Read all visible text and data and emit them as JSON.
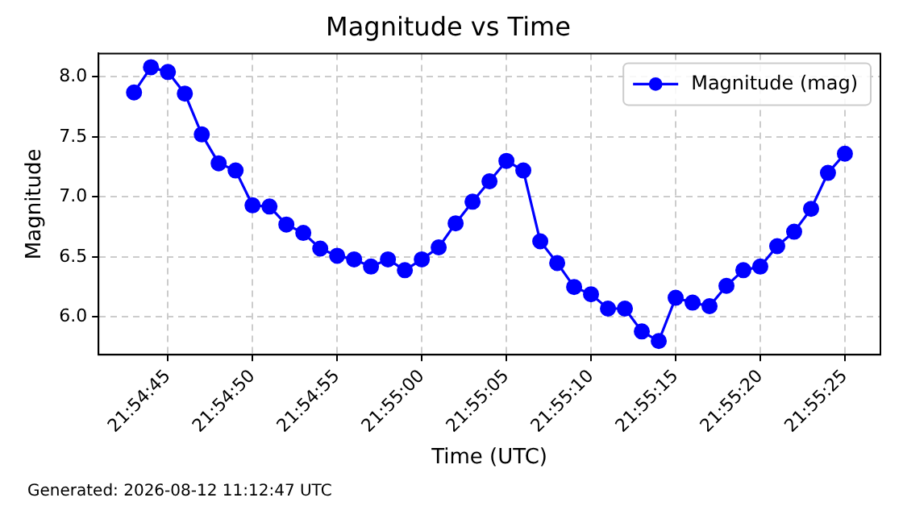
{
  "chart_data": {
    "type": "line",
    "title": "Magnitude vs Time",
    "xlabel": "Time (UTC)",
    "ylabel": "Magnitude",
    "x": [
      21.911944,
      21.912222,
      21.9125,
      21.912778,
      21.913056,
      21.913333,
      21.913611,
      21.913889,
      21.914167,
      21.914444,
      21.914722,
      21.915,
      21.915278,
      21.915556,
      21.915833,
      21.916111,
      21.916389,
      21.916667,
      21.916944,
      21.917222,
      21.9175,
      21.917778,
      21.918056,
      21.918333,
      21.918611,
      21.918889,
      21.919167,
      21.919444,
      21.919722,
      21.92,
      21.920278,
      21.920556,
      21.920833,
      21.921111,
      21.921389,
      21.921667,
      21.921944,
      21.922222,
      21.9225,
      21.922778,
      21.923056,
      21.923333,
      21.923611
    ],
    "series": [
      {
        "name": "Magnitude (mag)",
        "color": "#0000ff",
        "values": [
          7.87,
          8.08,
          8.04,
          7.86,
          7.52,
          7.28,
          7.22,
          6.93,
          6.92,
          6.77,
          6.7,
          6.57,
          6.51,
          6.48,
          6.42,
          6.48,
          6.39,
          6.48,
          6.58,
          6.78,
          6.96,
          7.13,
          7.3,
          7.22,
          6.63,
          6.45,
          6.25,
          6.19,
          6.07,
          6.07,
          5.88,
          5.8,
          6.16,
          6.12,
          6.09,
          6.26,
          6.39,
          6.42,
          6.59,
          6.71,
          6.9,
          7.2,
          7.36
        ]
      }
    ],
    "xlim": [
      21.911361,
      21.924194
    ],
    "xticks": [
      {
        "value": 21.9125,
        "label": "21:54:45"
      },
      {
        "value": 21.913889,
        "label": "21:54:50"
      },
      {
        "value": 21.915278,
        "label": "21:54:55"
      },
      {
        "value": 21.916667,
        "label": "21:55:00"
      },
      {
        "value": 21.918056,
        "label": "21:55:05"
      },
      {
        "value": 21.919444,
        "label": "21:55:10"
      },
      {
        "value": 21.920833,
        "label": "21:55:15"
      },
      {
        "value": 21.922222,
        "label": "21:55:20"
      },
      {
        "value": 21.923611,
        "label": "21:55:25"
      }
    ],
    "ylim": [
      5.686,
      8.194
    ],
    "yticks": [
      {
        "value": 6,
        "label": "6.0"
      },
      {
        "value": 6.5,
        "label": "6.5"
      },
      {
        "value": 7,
        "label": "7.0"
      },
      {
        "value": 7.5,
        "label": "7.5"
      },
      {
        "value": 8,
        "label": "8.0"
      }
    ],
    "grid": true,
    "legend": "top right",
    "marker": "circle",
    "line_style": "solid",
    "annotations": [
      "Generated: 2026-08-12 11:12:47 UTC"
    ]
  }
}
